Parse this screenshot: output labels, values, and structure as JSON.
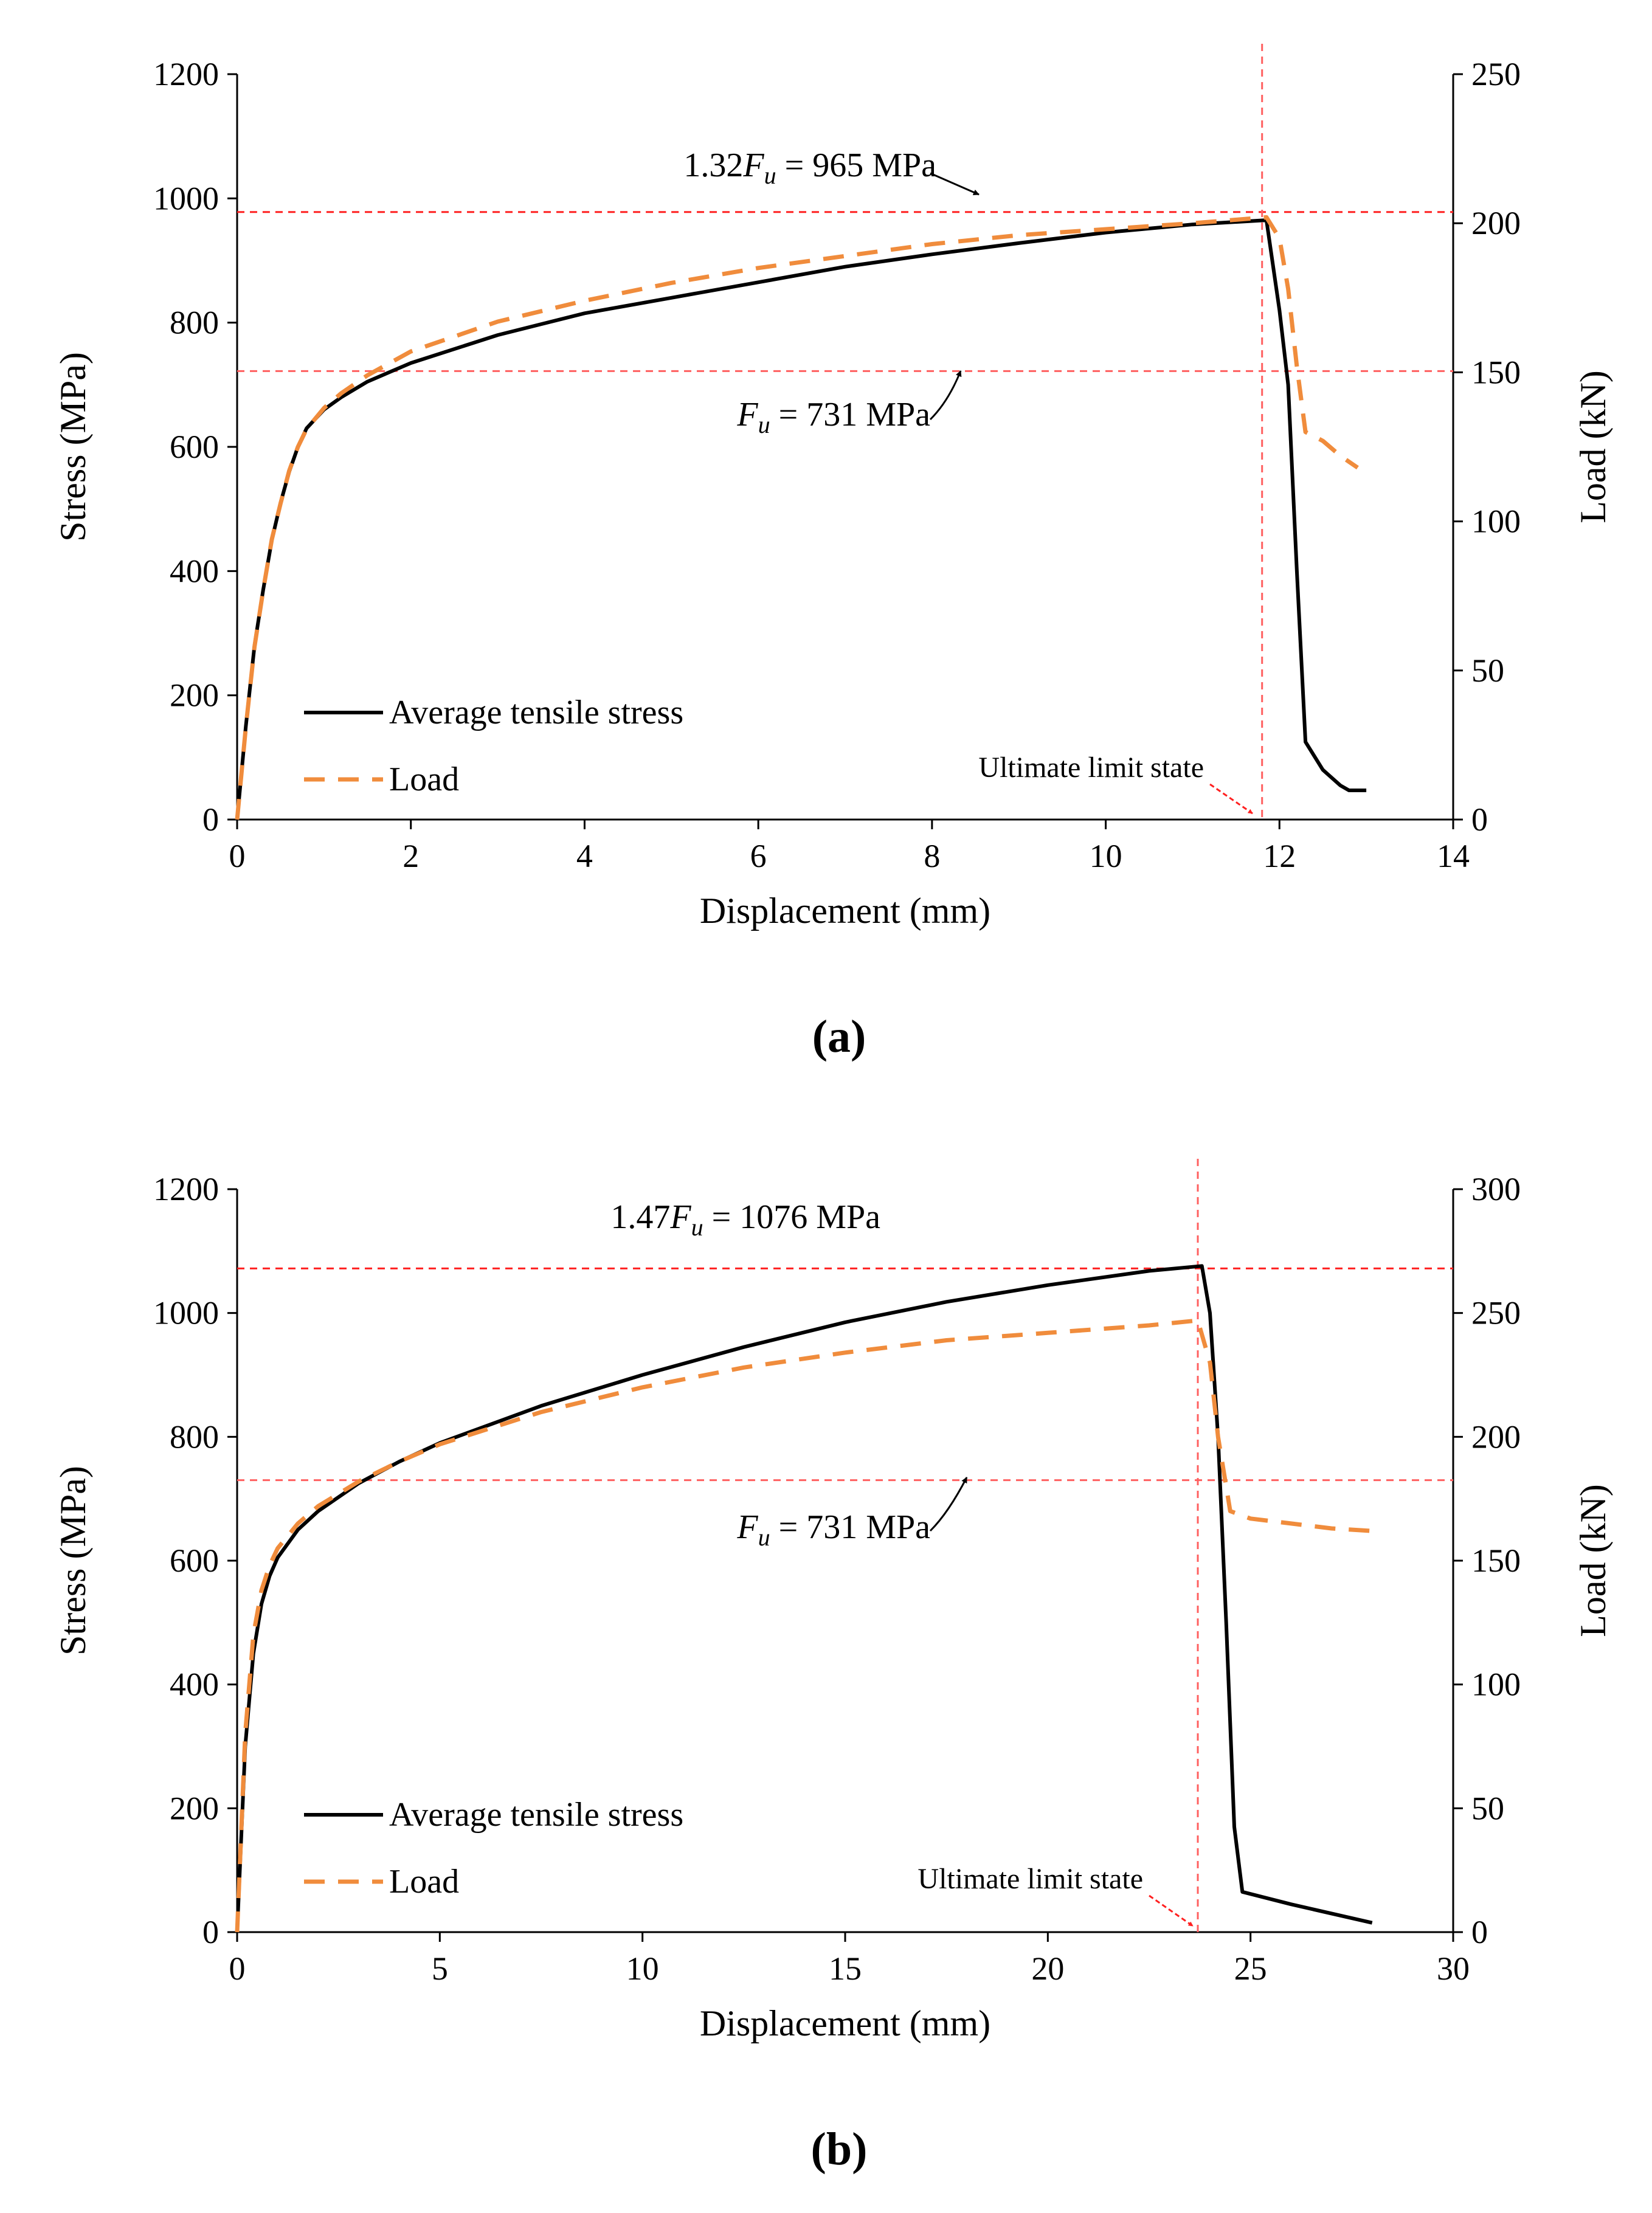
{
  "chart_data": [
    {
      "type": "line",
      "panel_label": "(a)",
      "xlabel": "Displacement (mm)",
      "ylabel": "Stress (MPa)",
      "y2label": "Load (kN)",
      "xlim": [
        0,
        14
      ],
      "ylim": [
        0,
        1200
      ],
      "y2lim": [
        0,
        250
      ],
      "xticks": [
        0,
        2,
        4,
        6,
        8,
        10,
        12,
        14
      ],
      "yticks": [
        0,
        200,
        400,
        600,
        800,
        1000,
        1200
      ],
      "y2ticks": [
        0,
        50,
        100,
        150,
        200,
        250
      ],
      "grid": false,
      "legend_position": "bottom-left",
      "series": [
        {
          "name": "Average tensile stress",
          "axis": "left",
          "color": "#000000",
          "style": "solid",
          "x": [
            0,
            0.1,
            0.2,
            0.3,
            0.4,
            0.5,
            0.6,
            0.7,
            0.8,
            1.0,
            1.2,
            1.5,
            2.0,
            3.0,
            4.0,
            5.0,
            6.0,
            7.0,
            8.0,
            9.0,
            10.0,
            11.0,
            11.85,
            12.0,
            12.1,
            12.2,
            12.3,
            12.5,
            12.7,
            12.8,
            13.0
          ],
          "y": [
            0,
            150,
            280,
            370,
            450,
            510,
            560,
            600,
            630,
            660,
            680,
            705,
            735,
            780,
            815,
            840,
            865,
            890,
            910,
            928,
            945,
            958,
            965,
            820,
            700,
            400,
            125,
            80,
            55,
            47,
            47
          ]
        },
        {
          "name": "Load",
          "axis": "right",
          "color": "#f08c3c",
          "style": "dashed",
          "x": [
            0,
            0.1,
            0.2,
            0.3,
            0.4,
            0.5,
            0.6,
            0.7,
            0.8,
            1.0,
            1.2,
            1.5,
            2.0,
            3.0,
            4.0,
            5.0,
            6.0,
            7.0,
            8.0,
            9.0,
            10.0,
            11.0,
            11.85,
            12.0,
            12.1,
            12.2,
            12.3,
            12.5,
            12.7,
            12.9
          ],
          "y": [
            0,
            31,
            58,
            77,
            94,
            106,
            117,
            125,
            131,
            138,
            143,
            149,
            157,
            167,
            174,
            180,
            185,
            189,
            193,
            196,
            198,
            200,
            202,
            195,
            178,
            152,
            130,
            127,
            122,
            118
          ]
        }
      ],
      "annotations": {
        "upper_line": {
          "value": 978,
          "prefix": "1.32",
          "var": "F",
          "sub": "u",
          "suffix": " = 965 MPa"
        },
        "lower_line": {
          "value": 722,
          "prefix": "",
          "var": "F",
          "sub": "u",
          "suffix": " = 731 MPa"
        },
        "ultimate_limit_state": {
          "x": 11.8,
          "label": "Ultimate limit state"
        }
      }
    },
    {
      "type": "line",
      "panel_label": "(b)",
      "xlabel": "Displacement (mm)",
      "ylabel": "Stress (MPa)",
      "y2label": "Load (kN)",
      "xlim": [
        0,
        30
      ],
      "ylim": [
        0,
        1200
      ],
      "y2lim": [
        0,
        300
      ],
      "xticks": [
        0,
        5,
        10,
        15,
        20,
        25,
        30
      ],
      "yticks": [
        0,
        200,
        400,
        600,
        800,
        1000,
        1200
      ],
      "y2ticks": [
        0,
        50,
        100,
        150,
        200,
        250,
        300
      ],
      "grid": false,
      "legend_position": "bottom-left",
      "series": [
        {
          "name": "Average tensile stress",
          "axis": "left",
          "color": "#000000",
          "style": "solid",
          "x": [
            0,
            0.2,
            0.4,
            0.6,
            0.8,
            1.0,
            1.5,
            2.0,
            3.0,
            4.0,
            5.0,
            7.5,
            10.0,
            12.5,
            15.0,
            17.5,
            20.0,
            22.5,
            23.8,
            24.0,
            24.2,
            24.4,
            24.6,
            24.8,
            26.0,
            28.0
          ],
          "y": [
            0,
            300,
            450,
            530,
            575,
            605,
            650,
            680,
            725,
            760,
            790,
            850,
            900,
            945,
            985,
            1018,
            1045,
            1068,
            1076,
            1000,
            800,
            500,
            170,
            65,
            45,
            15
          ]
        },
        {
          "name": "Load",
          "axis": "right",
          "color": "#f08c3c",
          "style": "dashed",
          "x": [
            0,
            0.2,
            0.4,
            0.6,
            0.8,
            1.0,
            1.5,
            2.0,
            3.0,
            4.0,
            5.0,
            7.5,
            10.0,
            12.5,
            15.0,
            17.5,
            20.0,
            22.5,
            23.7,
            24.0,
            24.2,
            24.5,
            25.0,
            26.0,
            27.0,
            28.0
          ],
          "y": [
            0,
            80,
            120,
            138,
            148,
            155,
            165,
            172,
            182,
            190,
            197,
            210,
            220,
            228,
            234,
            239,
            242,
            245,
            247,
            230,
            200,
            170,
            167,
            165,
            163,
            162
          ]
        }
      ],
      "annotations": {
        "upper_line": {
          "value": 1072,
          "prefix": "1.47",
          "var": "F",
          "sub": "u",
          "suffix": " = 1076 MPa"
        },
        "lower_line": {
          "value": 730,
          "prefix": "",
          "var": "F",
          "sub": "u",
          "suffix": " = 731 MPa"
        },
        "ultimate_limit_state": {
          "x": 23.7,
          "label": "Ultimate limit state"
        }
      }
    }
  ]
}
